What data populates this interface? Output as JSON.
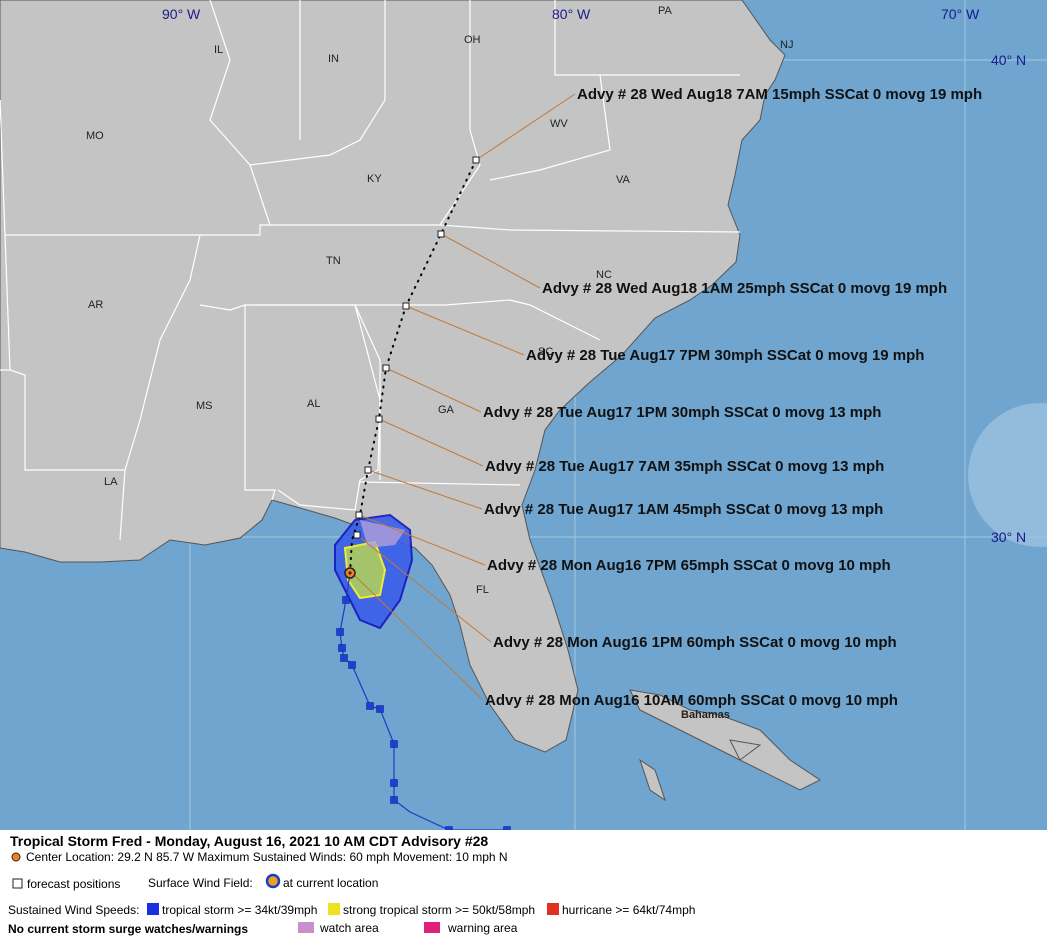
{
  "map": {
    "lon_labels": [
      "90° W",
      "80° W",
      "70° W"
    ],
    "lat_labels": [
      "40° N",
      "30° N"
    ],
    "places": [
      "IL",
      "IN",
      "OH",
      "PA",
      "NJ",
      "MO",
      "WV",
      "KY",
      "VA",
      "TN",
      "NC",
      "AR",
      "SC",
      "MS",
      "AL",
      "GA",
      "LA",
      "FL",
      "Bahamas"
    ],
    "forecast_labels": [
      "Advy # 28 Wed Aug18 7AM  15mph SSCat 0 movg 19 mph",
      "Advy # 28 Wed Aug18 1AM  25mph SSCat 0 movg 19 mph",
      "Advy # 28 Tue Aug17 7PM  30mph SSCat 0 movg 19 mph",
      "Advy # 28 Tue Aug17 1PM  30mph SSCat 0 movg 13 mph",
      "Advy # 28 Tue Aug17 7AM  35mph SSCat 0 movg 13 mph",
      "Advy # 28 Tue Aug17 1AM  45mph SSCat 0 movg 13 mph",
      "Advy # 28 Mon Aug16 7PM  65mph SSCat 0 movg 10 mph",
      "Advy # 28 Mon Aug16 1PM  60mph SSCat 0 movg 10 mph",
      "Advy # 28 Mon Aug16 10AM  60mph SSCat 0 movg 10 mph"
    ]
  },
  "legend": {
    "title": "Tropical Storm Fred  -  Monday, August 16, 2021  10 AM CDT  Advisory #28",
    "center": "Center Location: 29.2 N  85.7 W   Maximum Sustained Winds: 60 mph  Movement: 10 mph N",
    "forecast_positions": "forecast positions",
    "wind_field": "Surface Wind Field:",
    "current_location": "at current location",
    "sustained": "Sustained Wind Speeds:",
    "tropical_storm": "tropical storm >= 34kt/39mph",
    "strong_tropical_storm": "strong tropical storm >= 50kt/58mph",
    "hurricane": "hurricane >= 64kt/74mph",
    "surge": "No current storm surge watches/warnings",
    "watch": "watch area",
    "warning": "warning area"
  }
}
